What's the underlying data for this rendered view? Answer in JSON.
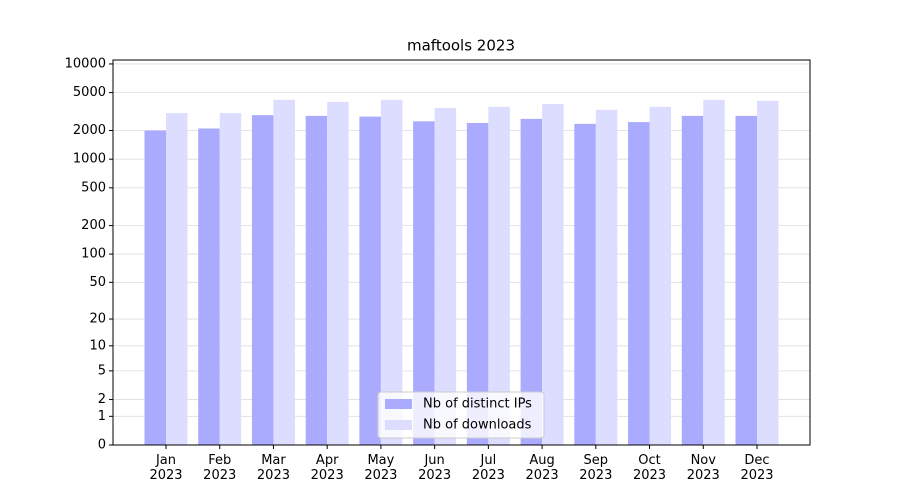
{
  "chart_data": {
    "type": "bar",
    "title": "maftools 2023",
    "categories": [
      "Jan\n2023",
      "Feb\n2023",
      "Mar\n2023",
      "Apr\n2023",
      "May\n2023",
      "Jun\n2023",
      "Jul\n2023",
      "Aug\n2023",
      "Sep\n2023",
      "Oct\n2023",
      "Nov\n2023",
      "Dec\n2023"
    ],
    "series": [
      {
        "name": "Nb of distinct IPs",
        "color": "#aaaaff",
        "values": [
          2000,
          2100,
          2900,
          2850,
          2800,
          2500,
          2400,
          2650,
          2350,
          2450,
          2850,
          2850
        ]
      },
      {
        "name": "Nb of downloads",
        "color": "#ddddff",
        "values": [
          3050,
          3050,
          4200,
          4000,
          4200,
          3450,
          3550,
          3800,
          3300,
          3550,
          4200,
          4100
        ]
      }
    ],
    "yscale": "log1p",
    "ylim": [
      0,
      11000
    ],
    "yticks": [
      0,
      1,
      2,
      5,
      10,
      20,
      50,
      100,
      200,
      500,
      1000,
      2000,
      5000,
      10000
    ],
    "grid": true,
    "legend": "lower center"
  }
}
